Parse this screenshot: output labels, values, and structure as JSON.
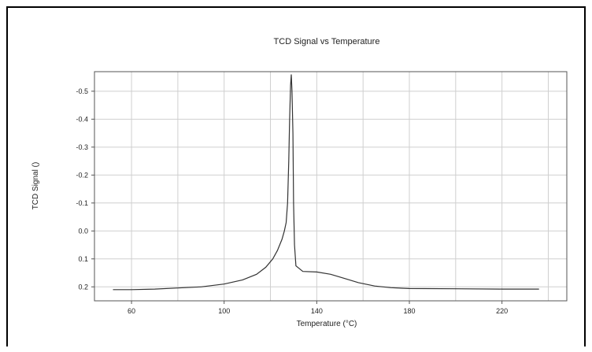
{
  "chart_data": {
    "type": "line",
    "title": "TCD Signal vs Temperature",
    "xlabel": "Temperature (°C)",
    "ylabel": "TCD Signal ()",
    "xlim": [
      44,
      248
    ],
    "ylim": [
      0.25,
      -0.57
    ],
    "y_reversed": true,
    "grid": true,
    "x_ticks": [
      {
        "value": 60,
        "label": "60"
      },
      {
        "value": 100,
        "label": "100"
      },
      {
        "value": 140,
        "label": "140"
      },
      {
        "value": 180,
        "label": "180"
      },
      {
        "value": 220,
        "label": "220"
      }
    ],
    "x_minor_grid": [
      80,
      120,
      160,
      200,
      240
    ],
    "y_ticks": [
      {
        "value": -0.5,
        "label": "-0.5"
      },
      {
        "value": -0.4,
        "label": "-0.4"
      },
      {
        "value": -0.3,
        "label": "-0.3"
      },
      {
        "value": -0.2,
        "label": "-0.2"
      },
      {
        "value": -0.1,
        "label": "-0.1"
      },
      {
        "value": 0.0,
        "label": "0.0"
      },
      {
        "value": 0.1,
        "label": "0.1"
      },
      {
        "value": 0.2,
        "label": "0.2"
      }
    ],
    "series": [
      {
        "line_color": "#333333",
        "points": [
          [
            52,
            0.21
          ],
          [
            60,
            0.21
          ],
          [
            70,
            0.208
          ],
          [
            80,
            0.204
          ],
          [
            90,
            0.2
          ],
          [
            100,
            0.19
          ],
          [
            108,
            0.175
          ],
          [
            114,
            0.155
          ],
          [
            118,
            0.13
          ],
          [
            121,
            0.1
          ],
          [
            123,
            0.07
          ],
          [
            125,
            0.03
          ],
          [
            126,
            0.0
          ],
          [
            126.8,
            -0.03
          ],
          [
            127.4,
            -0.1
          ],
          [
            127.9,
            -0.25
          ],
          [
            128.3,
            -0.4
          ],
          [
            128.7,
            -0.52
          ],
          [
            129,
            -0.56
          ],
          [
            129.3,
            -0.5
          ],
          [
            129.7,
            -0.35
          ],
          [
            130,
            -0.1
          ],
          [
            130.4,
            0.05
          ],
          [
            131,
            0.125
          ],
          [
            134,
            0.145
          ],
          [
            140,
            0.147
          ],
          [
            146,
            0.155
          ],
          [
            152,
            0.17
          ],
          [
            158,
            0.185
          ],
          [
            165,
            0.197
          ],
          [
            172,
            0.203
          ],
          [
            180,
            0.206
          ],
          [
            200,
            0.207
          ],
          [
            220,
            0.208
          ],
          [
            236,
            0.208
          ]
        ]
      }
    ]
  }
}
